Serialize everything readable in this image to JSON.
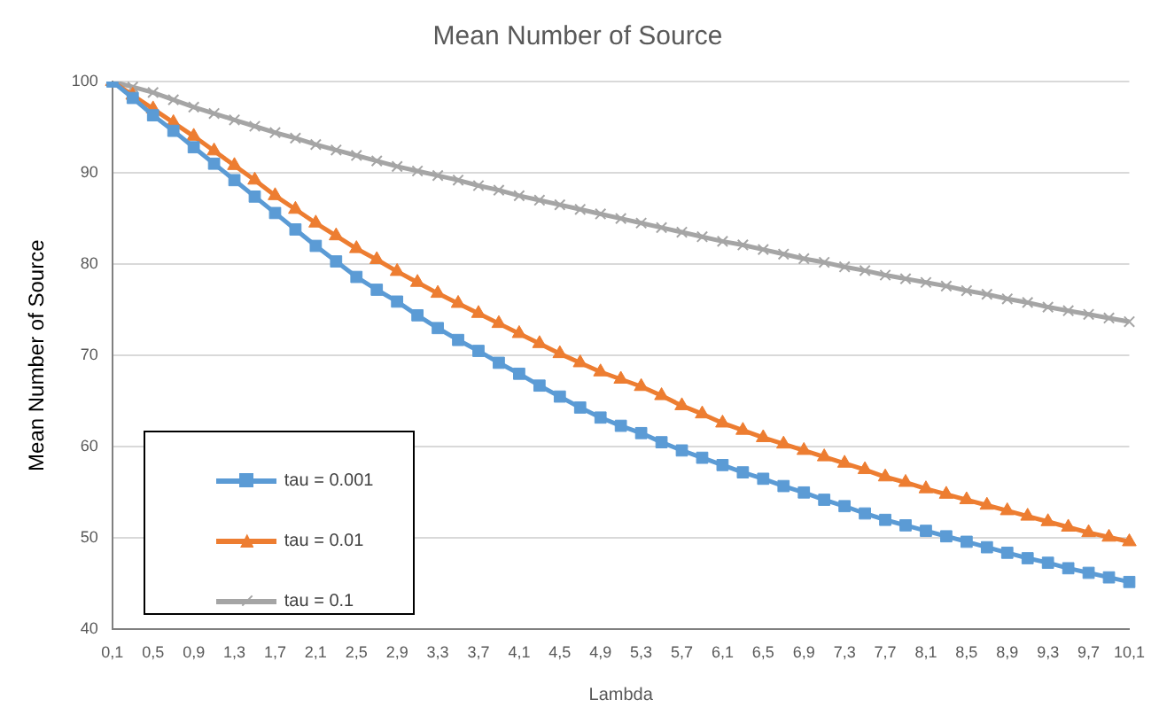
{
  "chart_data": {
    "type": "line",
    "title": "Mean Number of Source",
    "xlabel": "Lambda",
    "ylabel": "Mean Number of Source",
    "categories": [
      "0,1",
      null,
      "0,5",
      null,
      "0,9",
      null,
      "1,3",
      null,
      "1,7",
      null,
      "2,1",
      null,
      "2,5",
      null,
      "2,9",
      null,
      "3,3",
      null,
      "3,7",
      null,
      "4,1",
      null,
      "4,5",
      null,
      "4,9",
      null,
      "5,3",
      null,
      "5,7",
      null,
      "6,1",
      null,
      "6,5",
      null,
      "6,9",
      null,
      "7,3",
      null,
      "7,7",
      null,
      "8,1",
      null,
      "8,5",
      null,
      "8,9",
      null,
      "9,3",
      null,
      "9,7",
      null,
      "10,1"
    ],
    "series": [
      {
        "name": "tau = 0.001",
        "color": "#5b9bd5",
        "marker": "square",
        "values": [
          100,
          98.2,
          96.3,
          94.6,
          92.8,
          91,
          89.2,
          87.4,
          85.6,
          83.8,
          82,
          80.3,
          78.6,
          77.2,
          75.9,
          74.4,
          73,
          71.7,
          70.5,
          69.2,
          68,
          66.7,
          65.5,
          64.3,
          63.2,
          62.3,
          61.5,
          60.5,
          59.6,
          58.8,
          58,
          57.2,
          56.5,
          55.7,
          55,
          54.2,
          53.5,
          52.7,
          52,
          51.4,
          50.8,
          50.2,
          49.6,
          49,
          48.4,
          47.8,
          47.3,
          46.7,
          46.2,
          45.7,
          45.2
        ]
      },
      {
        "name": "tau = 0.01",
        "color": "#ed7d31",
        "marker": "triangle",
        "values": [
          100,
          98.5,
          97,
          95.5,
          94,
          92.4,
          90.8,
          89.2,
          87.5,
          86,
          84.5,
          83.1,
          81.7,
          80.5,
          79.2,
          78,
          76.8,
          75.7,
          74.6,
          73.5,
          72.4,
          71.3,
          70.2,
          69.2,
          68.2,
          67.4,
          66.6,
          65.6,
          64.5,
          63.6,
          62.6,
          61.8,
          61,
          60.3,
          59.6,
          58.9,
          58.2,
          57.5,
          56.7,
          56.1,
          55.4,
          54.8,
          54.2,
          53.6,
          53,
          52.4,
          51.8,
          51.2,
          50.6,
          50.1,
          49.6
        ]
      },
      {
        "name": "tau = 0.1",
        "color": "#a5a5a5",
        "marker": "cross",
        "values": [
          100,
          99.4,
          98.8,
          98,
          97.2,
          96.5,
          95.8,
          95.1,
          94.4,
          93.8,
          93.1,
          92.5,
          91.9,
          91.3,
          90.7,
          90.2,
          89.7,
          89.2,
          88.6,
          88.1,
          87.5,
          87,
          86.5,
          86,
          85.5,
          85,
          84.5,
          84,
          83.5,
          83,
          82.5,
          82.1,
          81.6,
          81.1,
          80.6,
          80.2,
          79.7,
          79.3,
          78.8,
          78.4,
          78,
          77.6,
          77.1,
          76.7,
          76.2,
          75.8,
          75.3,
          74.9,
          74.5,
          74.1,
          73.7
        ]
      }
    ],
    "ylim": [
      40,
      100
    ],
    "yticks": [
      40,
      50,
      60,
      70,
      80,
      90,
      100
    ],
    "grid": "y",
    "legend": "bottom left",
    "line_style": "solid"
  }
}
